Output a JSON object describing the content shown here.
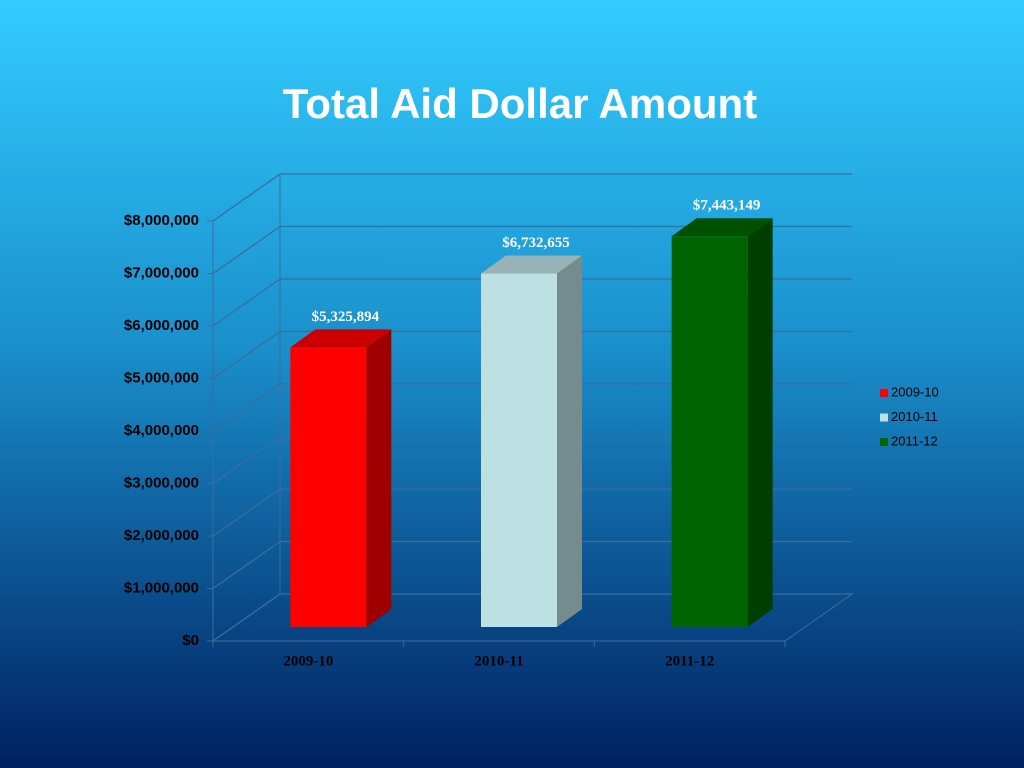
{
  "chart_data": {
    "type": "bar3d",
    "title": "Total Aid Dollar Amount",
    "categories": [
      "2009-10",
      "2010-11",
      "2011-12"
    ],
    "values": [
      5325894,
      6732655,
      7443149
    ],
    "value_labels": [
      "$5,325,894",
      "$6,732,655",
      "$7,443,149"
    ],
    "colors": [
      "#ff0000",
      "#bde0e3",
      "#006400"
    ],
    "ylim": [
      0,
      8000000
    ],
    "yticks": [
      {
        "value": 0,
        "label": "$0"
      },
      {
        "value": 1000000,
        "label": "$1,000,000"
      },
      {
        "value": 2000000,
        "label": "$2,000,000"
      },
      {
        "value": 3000000,
        "label": "$3,000,000"
      },
      {
        "value": 4000000,
        "label": "$4,000,000"
      },
      {
        "value": 5000000,
        "label": "$5,000,000"
      },
      {
        "value": 6000000,
        "label": "$6,000,000"
      },
      {
        "value": 7000000,
        "label": "$7,000,000"
      },
      {
        "value": 8000000,
        "label": "$8,000,000"
      }
    ],
    "grid": true,
    "legend": "right"
  }
}
